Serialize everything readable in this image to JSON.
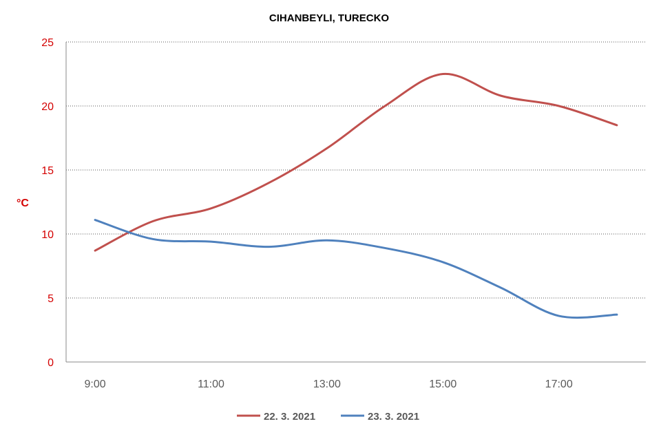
{
  "chart_data": {
    "type": "line",
    "title": "CIHANBEYLI, TURECKO",
    "ylabel": "°C",
    "xlabel": "",
    "ylim": [
      0,
      25
    ],
    "yticks": [
      "0",
      "5",
      "10",
      "15",
      "20",
      "25"
    ],
    "x": [
      9,
      10,
      11,
      12,
      13,
      14,
      15,
      16,
      17,
      18
    ],
    "xticks": [
      {
        "v": 9,
        "label": "9:00"
      },
      {
        "v": 11,
        "label": "11:00"
      },
      {
        "v": 13,
        "label": "13:00"
      },
      {
        "v": 15,
        "label": "15:00"
      },
      {
        "v": 17,
        "label": "17:00"
      }
    ],
    "xlim": [
      8.5,
      18.5
    ],
    "grid": true,
    "legend_position": "bottom",
    "series": [
      {
        "name": "22. 3. 2021",
        "color": "#c0504d",
        "values": [
          8.7,
          11.0,
          12.0,
          14.0,
          16.7,
          20.0,
          22.5,
          20.8,
          20.0,
          18.5
        ]
      },
      {
        "name": "23. 3. 2021",
        "color": "#4f81bd",
        "values": [
          11.1,
          9.6,
          9.4,
          9.0,
          9.5,
          8.9,
          7.8,
          5.8,
          3.6,
          3.7
        ]
      }
    ]
  }
}
